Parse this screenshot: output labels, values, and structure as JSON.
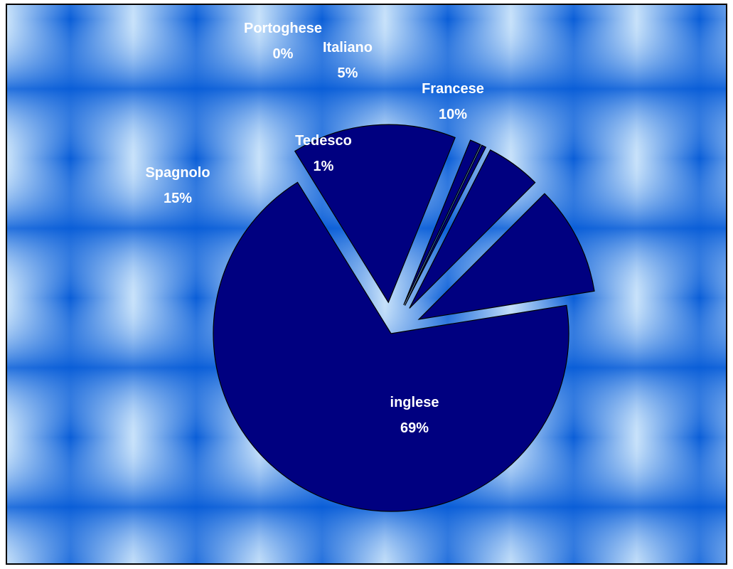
{
  "chart_data": {
    "type": "pie",
    "slice_color": "#000080",
    "background_colors": [
      "#0a5ed8",
      "#c8e2fa"
    ],
    "slices": [
      {
        "name": "Francese",
        "value": 10,
        "label": "10%"
      },
      {
        "name": "inglese",
        "value": 69,
        "label": "69%"
      },
      {
        "name": "Spagnolo",
        "value": 15,
        "label": "15%"
      },
      {
        "name": "Tedesco",
        "value": 1,
        "label": "1%"
      },
      {
        "name": "Portoghese",
        "value": 0.4,
        "label": "0%"
      },
      {
        "name": "Italiano",
        "value": 5,
        "label": "5%"
      }
    ]
  }
}
